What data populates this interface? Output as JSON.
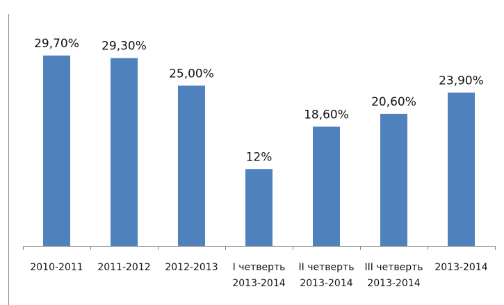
{
  "chart_data": {
    "type": "bar",
    "categories": [
      "2010-2011",
      "2011-2012",
      "2012-2013",
      "I четверть\n2013-2014",
      "II четверть\n2013-2014",
      "III четверть\n2013-2014",
      "2013-2014"
    ],
    "values": [
      29.7,
      29.3,
      25,
      12,
      18.6,
      20.6,
      23.9
    ],
    "value_labels": [
      "29,70%",
      "29,30%",
      "25,00%",
      "12%",
      "18,60%",
      "20,60%",
      "23,90%"
    ],
    "color": "#4f81bd",
    "ylim": [
      0,
      35
    ]
  }
}
